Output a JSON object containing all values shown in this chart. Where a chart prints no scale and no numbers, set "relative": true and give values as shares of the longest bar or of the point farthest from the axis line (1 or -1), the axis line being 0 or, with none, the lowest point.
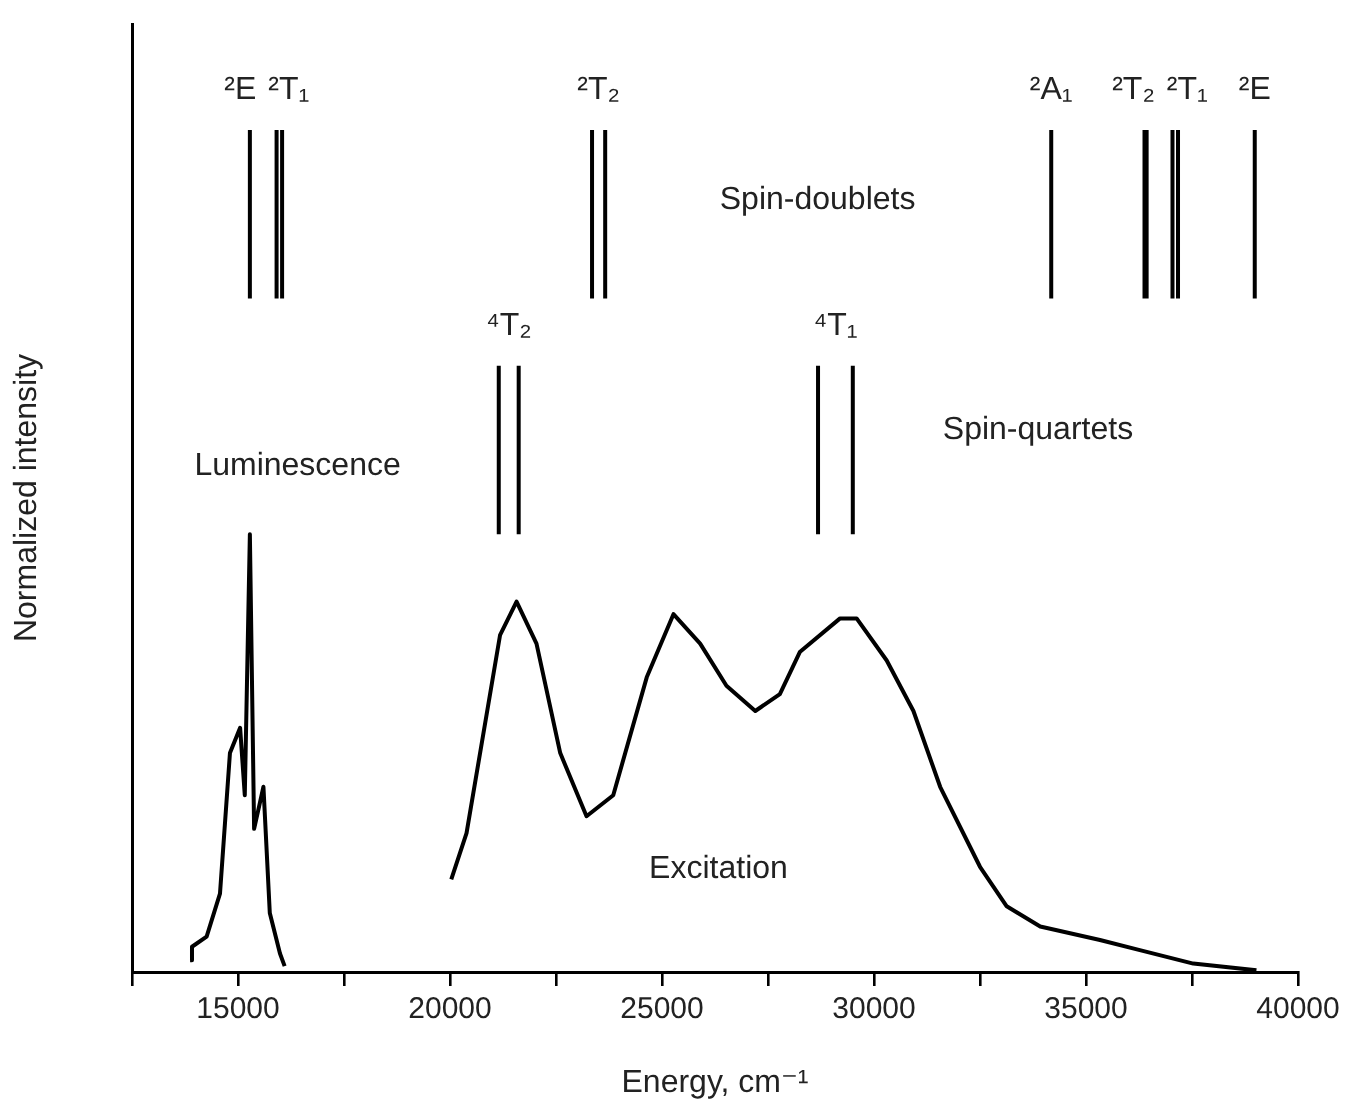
{
  "chart_data": {
    "type": "line",
    "relative": true,
    "xlabel": "Energy, cm⁻¹",
    "ylabel": "Normalized intensity",
    "xlim": [
      12500,
      40000
    ],
    "xticks": [
      {
        "value": 12500,
        "label": null
      },
      15000,
      {
        "value": 17500,
        "label": null
      },
      20000,
      {
        "value": 22500,
        "label": null
      },
      25000,
      {
        "value": 27500,
        "label": null
      },
      30000,
      {
        "value": 32500,
        "label": null
      },
      35000,
      {
        "value": 37500,
        "label": null
      },
      40000
    ],
    "grid": false,
    "legend": false,
    "marker": "none",
    "line_style": "solid",
    "series": [
      {
        "name": "Luminescence",
        "color": "#000000",
        "x": [
          13870,
          13915,
          14260,
          14575,
          14810,
          15050,
          15160,
          15280,
          15380,
          15600,
          15750,
          15990,
          16100
        ],
        "values": [
          0.014,
          0.03,
          0.042,
          0.093,
          0.26,
          0.29,
          0.21,
          0.52,
          0.17,
          0.22,
          0.07,
          0.022,
          0.007
        ]
      },
      {
        "name": "Excitation",
        "color": "#000000",
        "x": [
          20030,
          20390,
          21180,
          21570,
          22040,
          22600,
          23220,
          23850,
          24640,
          25270,
          25900,
          26520,
          27200,
          27780,
          28250,
          29200,
          29590,
          30300,
          30930,
          31560,
          32500,
          33130,
          33920,
          35330,
          36270,
          37530,
          39020
        ],
        "values": [
          0.11,
          0.165,
          0.4,
          0.44,
          0.39,
          0.26,
          0.185,
          0.21,
          0.35,
          0.425,
          0.39,
          0.34,
          0.31,
          0.33,
          0.38,
          0.42,
          0.42,
          0.37,
          0.31,
          0.22,
          0.125,
          0.078,
          0.054,
          0.038,
          0.026,
          0.01,
          0.002
        ]
      },
      {
        "name": "²E",
        "color": "#000000",
        "x": [
          15280,
          15280
        ],
        "values": [
          0.8,
          1
        ]
      },
      {
        "name": "²T₁",
        "color": "#000000",
        "x": [
          15910,
          15910,
          null,
          16040,
          16040
        ],
        "values": [
          0.8,
          1,
          null,
          0.8,
          1
        ]
      },
      {
        "name": "²T₂",
        "color": "#000000",
        "x": [
          23350,
          23350,
          null,
          23660,
          23660
        ],
        "values": [
          0.8,
          1,
          null,
          0.8,
          1
        ]
      },
      {
        "name": "²A₁",
        "color": "#000000",
        "x": [
          34180,
          34180
        ],
        "values": [
          0.8,
          1
        ]
      },
      {
        "name": "²T₂",
        "color": "#000000",
        "x": [
          36380,
          36380,
          null,
          36430,
          36430
        ],
        "values": [
          0.8,
          1,
          null,
          0.8,
          1
        ]
      },
      {
        "name": "²T₁",
        "color": "#000000",
        "x": [
          37040,
          37040,
          null,
          37170,
          37170
        ],
        "values": [
          0.8,
          1,
          null,
          0.8,
          1
        ]
      },
      {
        "name": "²E",
        "color": "#000000",
        "x": [
          38980,
          38980
        ],
        "values": [
          0.8,
          1
        ]
      },
      {
        "name": "⁴T₂",
        "color": "#000000",
        "x": [
          21150,
          21150,
          null,
          21620,
          21620
        ],
        "values": [
          0.52,
          0.72,
          null,
          0.52,
          0.72
        ]
      },
      {
        "name": "⁴T₁",
        "color": "#000000",
        "x": [
          28680,
          28680,
          null,
          29500,
          29500
        ],
        "values": [
          0.52,
          0.72,
          null,
          0.52,
          0.72
        ]
      }
    ],
    "annotations": [
      "Spin-doublets",
      "Spin-quartets"
    ]
  }
}
